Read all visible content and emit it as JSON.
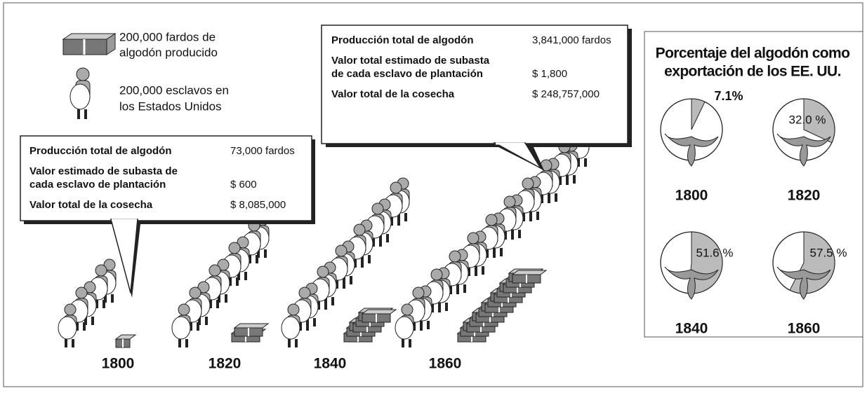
{
  "legend": [
    {
      "lines": [
        "200,000 fardos de",
        "algodón producido"
      ]
    },
    {
      "lines": [
        "200,000 esclavos en",
        "los Estados Unidos"
      ]
    }
  ],
  "callouts": [
    {
      "rows": [
        {
          "label": [
            "Producción total de algodón"
          ],
          "value": "73,000 fardos"
        },
        {
          "label": [
            "Valor estimado de subasta de",
            "cada esclavo de plantación"
          ],
          "value": "$ 600"
        },
        {
          "label": [
            "Valor total de la cosecha"
          ],
          "value": "$ 8,085,000"
        }
      ]
    },
    {
      "rows": [
        {
          "label": [
            "Producción total de algodón"
          ],
          "value": "3,841,000 fardos"
        },
        {
          "label": [
            "Valor total estimado de subasta",
            "de cada esclavo de plantación"
          ],
          "value": "$ 1,800"
        },
        {
          "label": [
            "Valor total de la cosecha"
          ],
          "value": "$ 248,757,000"
        }
      ]
    }
  ],
  "groups": [
    {
      "year": "1800",
      "slaves": 5,
      "bales": 0.5
    },
    {
      "year": "1820",
      "slaves": 9,
      "bales": 2
    },
    {
      "year": "1840",
      "slaves": 13,
      "bales": 7
    },
    {
      "year": "1860",
      "slaves": 20,
      "bales": 19
    }
  ],
  "exports": {
    "title": [
      "Porcentaje del algodón como",
      "exportación de los EE. UU."
    ],
    "items": [
      {
        "year": "1800",
        "percent": 7.1,
        "label": "7.1%"
      },
      {
        "year": "1820",
        "percent": 32.0,
        "label": "32.0 %"
      },
      {
        "year": "1840",
        "percent": 51.6,
        "label": "51.6 %"
      },
      {
        "year": "1860",
        "percent": 57.5,
        "label": "57.5 %"
      }
    ]
  }
}
